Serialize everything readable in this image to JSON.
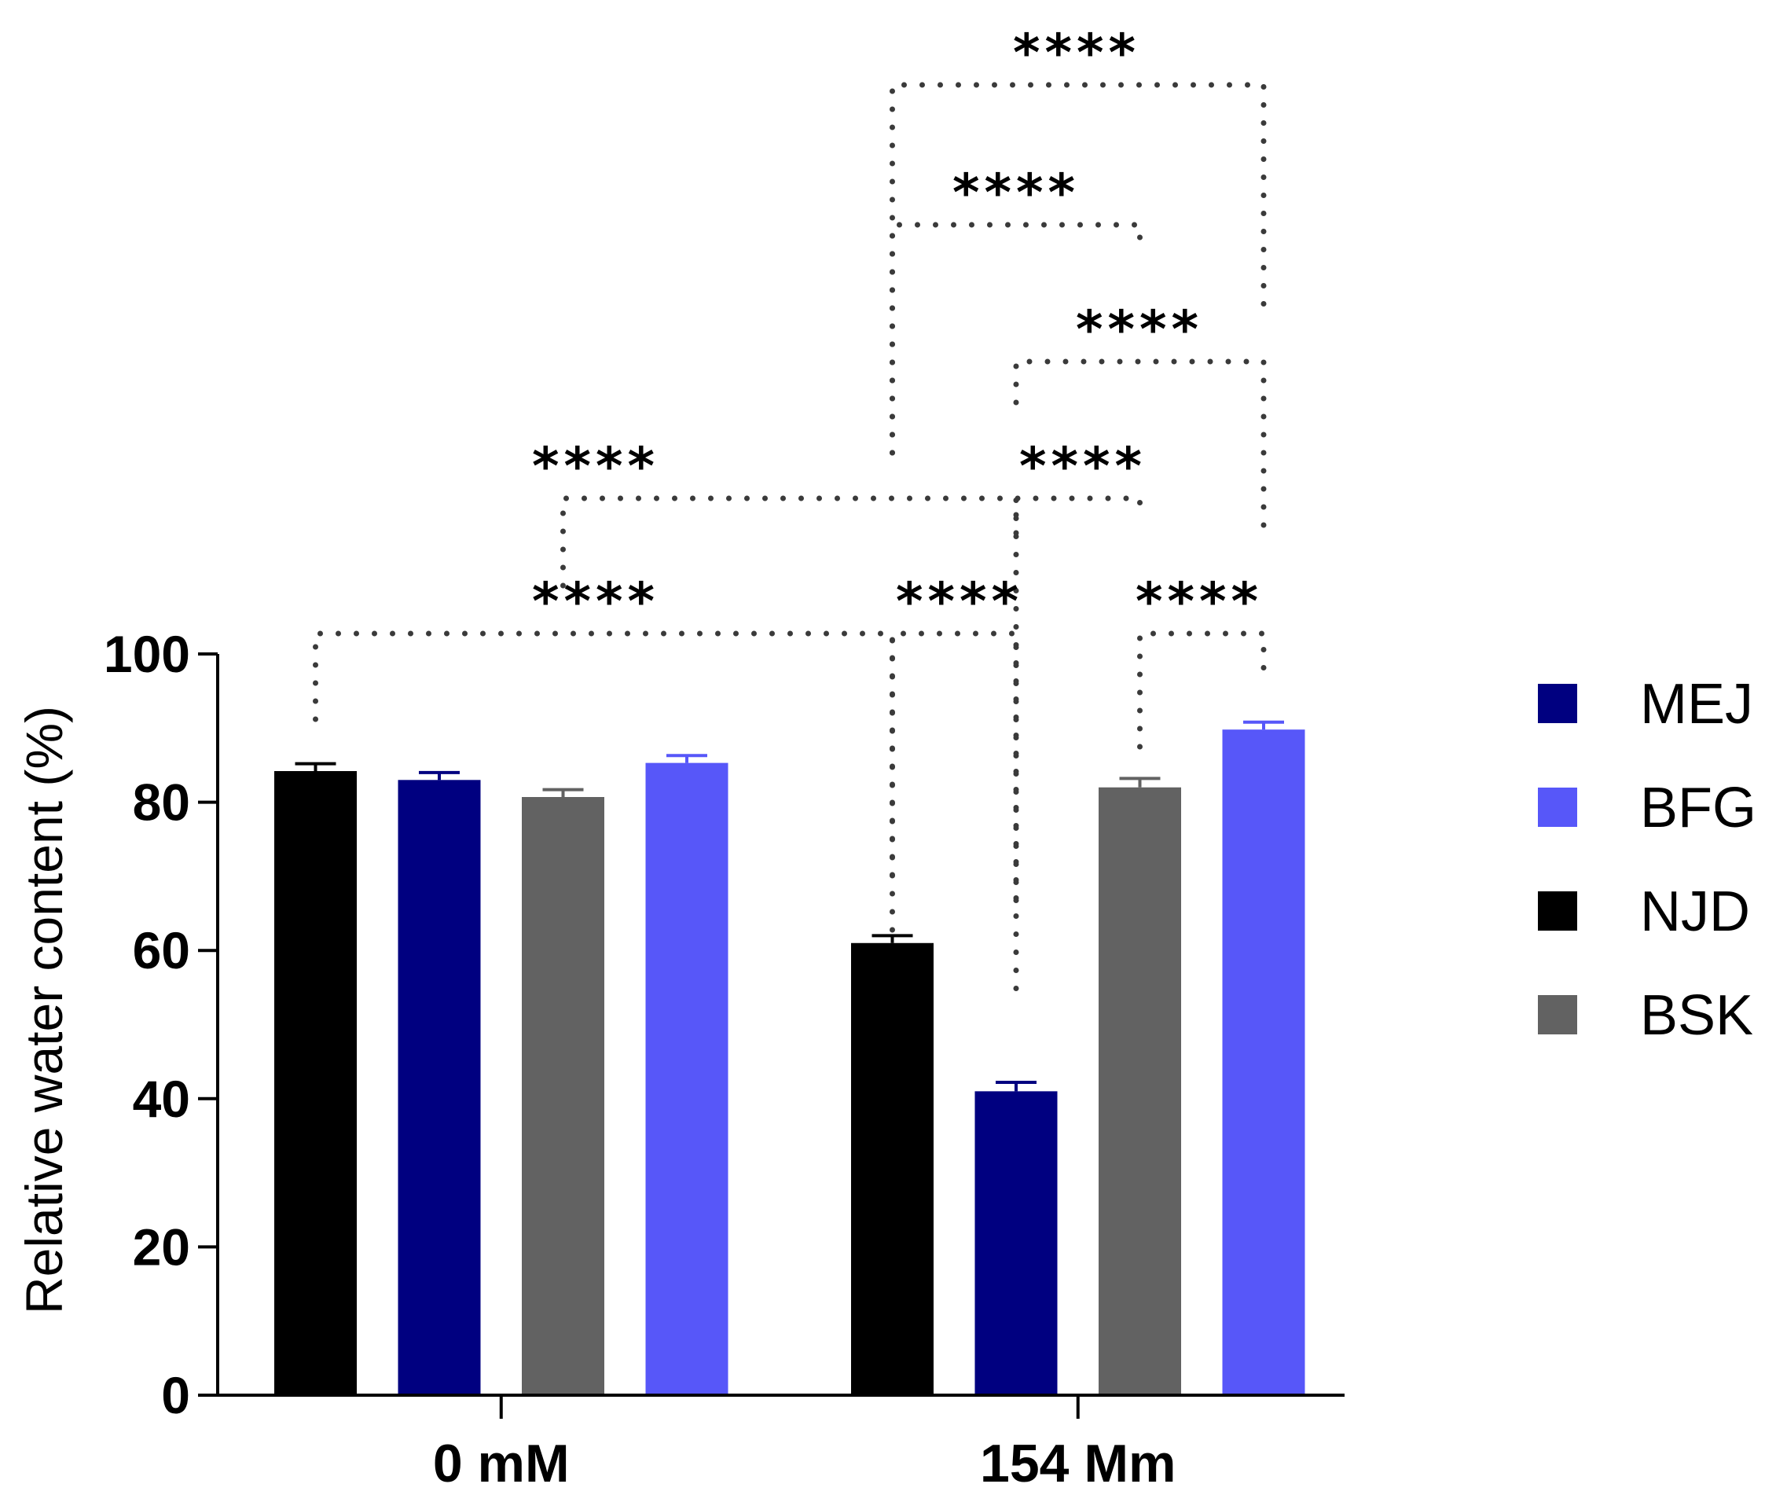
{
  "chart_data": {
    "type": "bar",
    "title": "",
    "xlabel": "",
    "ylabel": "Relative water content (%)",
    "ylim": [
      0,
      100
    ],
    "yticks": [
      0,
      20,
      40,
      60,
      80,
      100
    ],
    "categories": [
      "0 mM",
      "154 Mm"
    ],
    "series_order_in_groups": [
      "NJD",
      "MEJ",
      "BSK",
      "BFG"
    ],
    "series": [
      {
        "name": "MEJ",
        "color": "#000080",
        "values": [
          83,
          41
        ],
        "errors": [
          1.0,
          1.2
        ]
      },
      {
        "name": "BFG",
        "color": "#5757f9",
        "values": [
          85.3,
          89.8
        ],
        "errors": [
          1.0,
          1.0
        ]
      },
      {
        "name": "NJD",
        "color": "#000000",
        "values": [
          84.2,
          61
        ],
        "errors": [
          1.0,
          1.0
        ]
      },
      {
        "name": "BSK",
        "color": "#626262",
        "values": [
          80.7,
          82
        ],
        "errors": [
          1.0,
          1.2
        ]
      }
    ],
    "legend": {
      "position": "right",
      "entries": [
        "MEJ",
        "BFG",
        "NJD",
        "BSK"
      ]
    },
    "significance": [
      {
        "from": {
          "group": 0,
          "series": "NJD"
        },
        "to": {
          "group": 1,
          "series": "NJD"
        },
        "label": "****"
      },
      {
        "from": {
          "group": 0,
          "series": "BSK"
        },
        "to": {
          "group": 1,
          "series": "MEJ"
        },
        "label": "****"
      },
      {
        "from": {
          "group": 1,
          "series": "NJD"
        },
        "to": {
          "group": 1,
          "series": "MEJ"
        },
        "label": "****"
      },
      {
        "from": {
          "group": 1,
          "series": "BSK"
        },
        "to": {
          "group": 1,
          "series": "BFG"
        },
        "label": "****"
      },
      {
        "from": {
          "group": 1,
          "series": "MEJ"
        },
        "to": {
          "group": 1,
          "series": "BSK"
        },
        "label": "****"
      },
      {
        "from": {
          "group": 1,
          "series": "MEJ"
        },
        "to": {
          "group": 1,
          "series": "BFG"
        },
        "label": "****"
      },
      {
        "from": {
          "group": 1,
          "series": "NJD"
        },
        "to": {
          "group": 1,
          "series": "BSK"
        },
        "label": "****"
      },
      {
        "from": {
          "group": 1,
          "series": "NJD"
        },
        "to": {
          "group": 1,
          "series": "BFG"
        },
        "label": "****"
      }
    ]
  }
}
